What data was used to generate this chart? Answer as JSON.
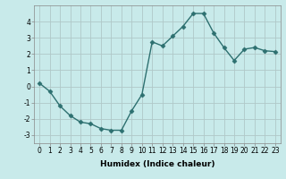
{
  "x": [
    0,
    1,
    2,
    3,
    4,
    5,
    6,
    7,
    8,
    9,
    10,
    11,
    12,
    13,
    14,
    15,
    16,
    17,
    18,
    19,
    20,
    21,
    22,
    23
  ],
  "y": [
    0.2,
    -0.3,
    -1.2,
    -1.8,
    -2.2,
    -2.3,
    -2.6,
    -2.7,
    -2.7,
    -1.5,
    -0.5,
    2.75,
    2.5,
    3.1,
    3.7,
    4.5,
    4.5,
    3.3,
    2.4,
    1.6,
    2.3,
    2.4,
    2.2,
    2.15
  ],
  "line_color": "#2d7070",
  "marker": "D",
  "marker_size": 2.5,
  "background_color": "#c8eaea",
  "grid_color": "#b0c8c8",
  "xlabel": "Humidex (Indice chaleur)",
  "ylabel": "",
  "xlim": [
    -0.5,
    23.5
  ],
  "ylim": [
    -3.5,
    5.0
  ],
  "yticks": [
    -3,
    -2,
    -1,
    0,
    1,
    2,
    3,
    4
  ],
  "xticks": [
    0,
    1,
    2,
    3,
    4,
    5,
    6,
    7,
    8,
    9,
    10,
    11,
    12,
    13,
    14,
    15,
    16,
    17,
    18,
    19,
    20,
    21,
    22,
    23
  ],
  "tick_fontsize": 5.5,
  "xlabel_fontsize": 6.5,
  "line_width": 1.0
}
